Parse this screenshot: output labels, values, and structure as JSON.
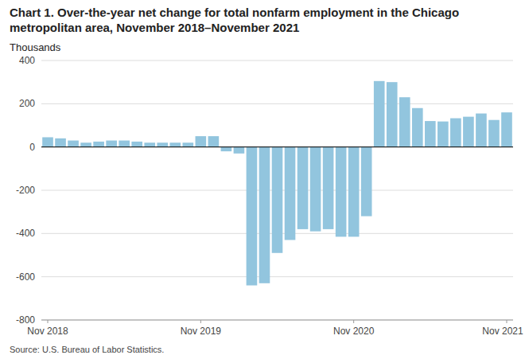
{
  "chart_data": {
    "type": "bar",
    "title": "Chart 1. Over-the-year net change for total nonfarm employment in the Chicago metropolitan area, November 2018–November 2021",
    "ylabel": "Thousands",
    "source": "Source: U.S. Bureau of Labor Statistics.",
    "categories": [
      "Nov 2018",
      null,
      null,
      null,
      null,
      null,
      null,
      null,
      null,
      null,
      null,
      null,
      "Nov 2019",
      null,
      null,
      null,
      null,
      null,
      null,
      null,
      null,
      null,
      null,
      null,
      "Nov 2020",
      null,
      null,
      null,
      null,
      null,
      null,
      null,
      null,
      null,
      null,
      null,
      "Nov 2021"
    ],
    "values": [
      45,
      40,
      30,
      20,
      25,
      30,
      30,
      25,
      20,
      20,
      20,
      20,
      50,
      50,
      -20,
      -30,
      -640,
      -630,
      -490,
      -430,
      -380,
      -390,
      -380,
      -415,
      -415,
      -320,
      305,
      300,
      230,
      180,
      120,
      118,
      133,
      140,
      155,
      125,
      160
    ],
    "color": "#92c5de",
    "ylim": [
      -800,
      400
    ],
    "yticks": [
      -800,
      -600,
      -400,
      -200,
      0,
      200,
      400
    ],
    "grid": true
  }
}
